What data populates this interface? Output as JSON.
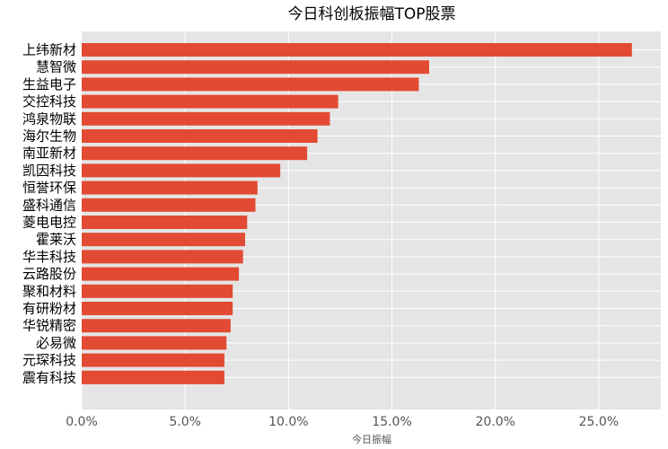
{
  "chart_data": {
    "type": "bar",
    "orientation": "horizontal",
    "title": "今日科创板振幅TOP股票",
    "xlabel": "今日振幅",
    "ylabel": "",
    "categories": [
      "上纬新材",
      "慧智微",
      "生益电子",
      "交控科技",
      "鸿泉物联",
      "海尔生物",
      "南亚新材",
      "凯因科技",
      "恒誉环保",
      "盛科通信",
      "菱电电控",
      "霍莱沃",
      "华丰科技",
      "云路股份",
      "聚和材料",
      "有研粉材",
      "华锐精密",
      "必易微",
      "元琛科技",
      "震有科技"
    ],
    "values": [
      26.6,
      16.8,
      16.3,
      12.4,
      12.0,
      11.4,
      10.9,
      9.6,
      8.5,
      8.4,
      8.0,
      7.9,
      7.8,
      7.6,
      7.3,
      7.3,
      7.2,
      7.0,
      6.9,
      6.9
    ],
    "value_unit": "%",
    "xlim": [
      0,
      28
    ],
    "xticks": [
      0,
      5,
      10,
      15,
      20,
      25
    ],
    "xtick_labels": [
      "0.0%",
      "5.0%",
      "10.0%",
      "15.0%",
      "20.0%",
      "25.0%"
    ],
    "grid": true,
    "bar_color": "#E24A33",
    "background_color": "#E5E5E5",
    "grid_color": "#FFFFFF"
  }
}
